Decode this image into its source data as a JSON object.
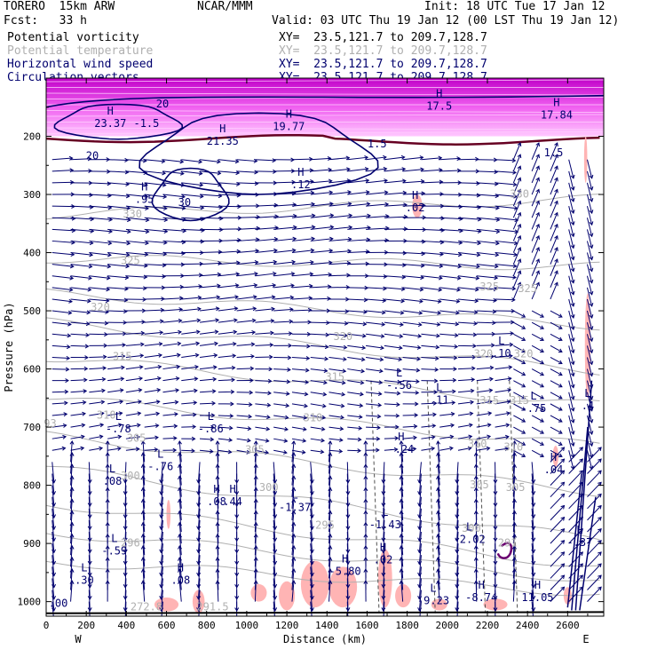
{
  "header": {
    "model": "TORERO  15km ARW",
    "org": "NCAR/MMM",
    "init": "Init: 18 UTC Tue 17 Jan 12",
    "fcst": "Fcst:   33 h",
    "valid": "Valid: 03 UTC Thu 19 Jan 12 (00 LST Thu 19 Jan 12)",
    "fields": [
      {
        "name": "Potential vorticity",
        "xy": "XY=  23.5,121.7 to 209.7,128.7",
        "color": "#000000"
      },
      {
        "name": "Potential temperature",
        "xy": "XY=  23.5,121.7 to 209.7,128.7",
        "color": "#b0b0b0"
      },
      {
        "name": "Horizontal wind speed",
        "xy": "XY=  23.5,121.7 to 209.7,128.7",
        "color": "#00006e"
      },
      {
        "name": "Circulation vectors",
        "xy": "XY=  23.5,121.7 to 209.7,128.7",
        "color": "#00006e"
      }
    ]
  },
  "chart_data": {
    "type": "cross-section",
    "xlabel": "Distance (km)",
    "ylabel": "Pressure (hPa)",
    "xlim": [
      0,
      2780
    ],
    "ylim": [
      1025,
      100
    ],
    "x_ticks": [
      0,
      200,
      400,
      600,
      800,
      1000,
      1200,
      1400,
      1600,
      1800,
      2000,
      2200,
      2400,
      2600
    ],
    "y_ticks": [
      200,
      300,
      400,
      500,
      600,
      700,
      800,
      900,
      1000
    ],
    "left_end": "W",
    "right_end": "E",
    "colors": {
      "theta": "#b0b0b0",
      "wind": "#00006e",
      "pv_fill": "#ffb4b4",
      "stratosphere": "#e000e0",
      "tropopause": "#660022",
      "ground": "#000000"
    },
    "theta_labels": [
      {
        "x": 430,
        "p": 340,
        "text": "330"
      },
      {
        "x": 2360,
        "p": 305,
        "text": "330"
      },
      {
        "x": 420,
        "p": 420,
        "text": "325"
      },
      {
        "x": 2210,
        "p": 465,
        "text": "325"
      },
      {
        "x": 2400,
        "p": 468,
        "text": "325"
      },
      {
        "x": 270,
        "p": 500,
        "text": "320"
      },
      {
        "x": 1480,
        "p": 550,
        "text": "320"
      },
      {
        "x": 2180,
        "p": 580,
        "text": "320"
      },
      {
        "x": 2380,
        "p": 580,
        "text": "320"
      },
      {
        "x": 380,
        "p": 585,
        "text": "315"
      },
      {
        "x": 1440,
        "p": 620,
        "text": "315"
      },
      {
        "x": 2210,
        "p": 660,
        "text": "315"
      },
      {
        "x": 2360,
        "p": 660,
        "text": "315"
      },
      {
        "x": 300,
        "p": 685,
        "text": "310"
      },
      {
        "x": 1330,
        "p": 690,
        "text": "310"
      },
      {
        "x": 2150,
        "p": 735,
        "text": "310"
      },
      {
        "x": 2330,
        "p": 740,
        "text": "310"
      },
      {
        "x": 450,
        "p": 725,
        "text": "305"
      },
      {
        "x": 1040,
        "p": 745,
        "text": "305"
      },
      {
        "x": 2160,
        "p": 805,
        "text": "305"
      },
      {
        "x": 2340,
        "p": 810,
        "text": "305"
      },
      {
        "x": 420,
        "p": 790,
        "text": "300"
      },
      {
        "x": 1110,
        "p": 810,
        "text": "300"
      },
      {
        "x": 2120,
        "p": 880,
        "text": "300"
      },
      {
        "x": 1390,
        "p": 875,
        "text": "295"
      },
      {
        "x": 2300,
        "p": 905,
        "text": "291"
      },
      {
        "x": 420,
        "p": 905,
        "text": "296"
      },
      {
        "x": 500,
        "p": 1015,
        "text": "272.8"
      },
      {
        "x": 830,
        "p": 1015,
        "text": "291.5"
      },
      {
        "x": 20,
        "p": 700,
        "text": "93"
      }
    ],
    "pv_lh_labels": [
      {
        "x": 1960,
        "p": 145,
        "text": "H",
        "value": "17.5"
      },
      {
        "x": 2545,
        "p": 160,
        "text": "H",
        "value": "17.84"
      },
      {
        "x": 320,
        "p": 175,
        "text": "H",
        "value": "23.37"
      },
      {
        "x": 1210,
        "p": 180,
        "text": "H",
        "value": "19.77"
      },
      {
        "x": 880,
        "p": 205,
        "text": "H",
        "value": "21.35"
      },
      {
        "x": 500,
        "p": 175,
        "text": "",
        "value": "-1.5"
      },
      {
        "x": 1650,
        "p": 210,
        "text": "",
        "value": "1.5"
      },
      {
        "x": 2530,
        "p": 225,
        "text": "",
        "value": "1.5"
      },
      {
        "x": 490,
        "p": 305,
        "text": "H",
        "value": ".95"
      },
      {
        "x": 1270,
        "p": 280,
        "text": "H",
        "value": ".12"
      },
      {
        "x": 1840,
        "p": 320,
        "text": "H",
        "value": ".02"
      },
      {
        "x": 2270,
        "p": 570,
        "text": "L",
        "value": ".10"
      },
      {
        "x": 1760,
        "p": 625,
        "text": "L",
        "value": "-.56"
      },
      {
        "x": 1960,
        "p": 650,
        "text": "L",
        "value": ".11"
      },
      {
        "x": 2430,
        "p": 665,
        "text": "L",
        "value": "-.75"
      },
      {
        "x": 2700,
        "p": 660,
        "text": "L",
        "value": ".4"
      },
      {
        "x": 2530,
        "p": 770,
        "text": "H",
        "value": ".04"
      },
      {
        "x": 360,
        "p": 700,
        "text": "L",
        "value": "-.78"
      },
      {
        "x": 820,
        "p": 700,
        "text": "L",
        "value": "-.86"
      },
      {
        "x": 1770,
        "p": 735,
        "text": "H",
        "value": "-.24"
      },
      {
        "x": 330,
        "p": 790,
        "text": "L",
        "value": ".08"
      },
      {
        "x": 570,
        "p": 765,
        "text": "L",
        "value": "-.76"
      },
      {
        "x": 850,
        "p": 825,
        "text": "H",
        "value": ".08"
      },
      {
        "x": 930,
        "p": 825,
        "text": "H",
        "value": ".44"
      },
      {
        "x": 1240,
        "p": 835,
        "text": "L",
        "value": "-1.37"
      },
      {
        "x": 1690,
        "p": 865,
        "text": "L",
        "value": "-1.43"
      },
      {
        "x": 2110,
        "p": 890,
        "text": "L",
        "value": "-2.02"
      },
      {
        "x": 2660,
        "p": 895,
        "text": "L",
        "value": "-.37"
      },
      {
        "x": 340,
        "p": 910,
        "text": "L",
        "value": "-.59"
      },
      {
        "x": 190,
        "p": 960,
        "text": "L",
        "value": ".30"
      },
      {
        "x": 670,
        "p": 960,
        "text": "H",
        "value": ".08"
      },
      {
        "x": 1490,
        "p": 945,
        "text": "H",
        "value": "-5.80"
      },
      {
        "x": 1680,
        "p": 925,
        "text": "H",
        "value": ".02"
      },
      {
        "x": 1930,
        "p": 995,
        "text": "L",
        "value": "-9.23"
      },
      {
        "x": 2170,
        "p": 990,
        "text": "H",
        "value": "-8.74"
      },
      {
        "x": 2450,
        "p": 990,
        "text": "H",
        "value": "11.05"
      },
      {
        "x": 60,
        "p": 1000,
        "text": "",
        "value": ".00"
      }
    ],
    "wind_speed_labels": [
      {
        "x": 580,
        "p": 150,
        "text": "20"
      },
      {
        "x": 230,
        "p": 240,
        "text": "20"
      },
      {
        "x": 690,
        "p": 320,
        "text": "30"
      }
    ]
  }
}
